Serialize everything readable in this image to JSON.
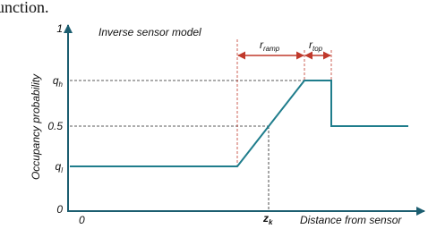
{
  "header_fragment": "unction.",
  "diagram": {
    "title": "Inverse sensor model",
    "y_axis_label": "Occupancy probability",
    "x_axis_label": "Distance from sensor",
    "y_labels": {
      "top": "1",
      "high": {
        "base": "q",
        "sub": "h"
      },
      "mid": "0.5",
      "low": {
        "base": "q",
        "sub": "l"
      },
      "bottom": "0"
    },
    "x_labels": {
      "origin": "0",
      "zk": {
        "base": "z",
        "sub": "k"
      }
    },
    "spans": {
      "ramp": {
        "base": "r",
        "sub": "ramp"
      },
      "top": {
        "base": "r",
        "sub": "top"
      }
    }
  }
}
